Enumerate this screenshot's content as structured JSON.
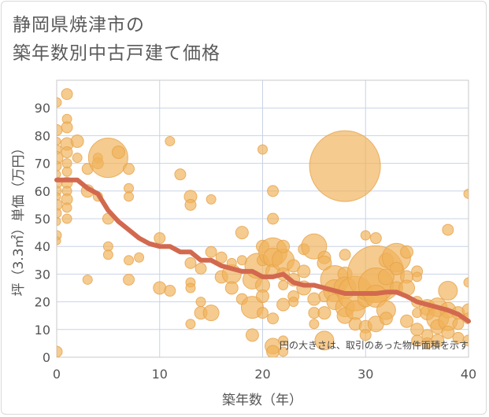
{
  "chart_data": {
    "type": "scatter",
    "title": [
      "静岡県焼津市の",
      "築年数別中古戸建て価格"
    ],
    "xlabel": "築年数（年）",
    "ylabel": "坪（3.3㎡）単価（万円）",
    "annotation": "円の大きさは、取引のあった物件面積を示す",
    "xlim": [
      0,
      40
    ],
    "ylim": [
      0,
      100
    ],
    "xticks": [
      0,
      10,
      20,
      30,
      40
    ],
    "yticks": [
      0,
      10,
      20,
      30,
      40,
      50,
      60,
      70,
      80,
      90
    ],
    "colors": {
      "bubble": "#f0b35a",
      "bubble_stroke": "#e6a24a",
      "trend": "#d2694f",
      "grid": "#c9d3e6",
      "plot_border": "#c9c9c9"
    },
    "trend": {
      "x": [
        0,
        1,
        2,
        3,
        4,
        5,
        6,
        7,
        8,
        9,
        10,
        11,
        12,
        13,
        14,
        15,
        16,
        17,
        18,
        19,
        20,
        21,
        22,
        23,
        24,
        25,
        26,
        27,
        28,
        29,
        30,
        31,
        32,
        33,
        34,
        35,
        36,
        37,
        38,
        39,
        40
      ],
      "y": [
        64,
        64,
        64,
        61,
        59,
        53,
        49,
        46,
        43,
        41,
        40,
        40,
        38,
        38,
        35,
        35,
        33,
        32,
        31,
        31,
        29,
        29,
        30,
        27,
        26,
        26,
        25,
        24,
        23,
        23,
        23,
        23,
        23.5,
        23.5,
        22,
        20,
        19,
        18,
        17,
        15.5,
        13
      ]
    },
    "points": [
      {
        "x": 0,
        "y": 92,
        "s": 6
      },
      {
        "x": 0,
        "y": 82,
        "s": 7
      },
      {
        "x": 0,
        "y": 78,
        "s": 5
      },
      {
        "x": 0,
        "y": 75,
        "s": 6
      },
      {
        "x": 0,
        "y": 72,
        "s": 8
      },
      {
        "x": 0,
        "y": 69,
        "s": 6
      },
      {
        "x": 0,
        "y": 66,
        "s": 5
      },
      {
        "x": 0,
        "y": 63,
        "s": 7
      },
      {
        "x": 0,
        "y": 60,
        "s": 6
      },
      {
        "x": 0,
        "y": 58,
        "s": 5
      },
      {
        "x": 0,
        "y": 55,
        "s": 7
      },
      {
        "x": 0,
        "y": 52,
        "s": 6
      },
      {
        "x": 0,
        "y": 49,
        "s": 5
      },
      {
        "x": 0,
        "y": 44,
        "s": 6
      },
      {
        "x": 0,
        "y": 42,
        "s": 5
      },
      {
        "x": 0,
        "y": 2,
        "s": 7
      },
      {
        "x": 1,
        "y": 95,
        "s": 7
      },
      {
        "x": 1,
        "y": 86,
        "s": 6
      },
      {
        "x": 1,
        "y": 83,
        "s": 7
      },
      {
        "x": 1,
        "y": 77,
        "s": 8
      },
      {
        "x": 1,
        "y": 74,
        "s": 7
      },
      {
        "x": 1,
        "y": 70,
        "s": 6
      },
      {
        "x": 1,
        "y": 67,
        "s": 6
      },
      {
        "x": 1,
        "y": 63,
        "s": 7
      },
      {
        "x": 1,
        "y": 60,
        "s": 6
      },
      {
        "x": 1,
        "y": 57,
        "s": 7
      },
      {
        "x": 1,
        "y": 54,
        "s": 6
      },
      {
        "x": 1,
        "y": 50,
        "s": 6
      },
      {
        "x": 2,
        "y": 78,
        "s": 8
      },
      {
        "x": 2,
        "y": 72,
        "s": 6
      },
      {
        "x": 3,
        "y": 68,
        "s": 7
      },
      {
        "x": 3,
        "y": 60,
        "s": 8
      },
      {
        "x": 3,
        "y": 28,
        "s": 6
      },
      {
        "x": 4,
        "y": 72,
        "s": 6
      },
      {
        "x": 4,
        "y": 70,
        "s": 7
      },
      {
        "x": 4,
        "y": 58,
        "s": 6
      },
      {
        "x": 5,
        "y": 72,
        "s": 25
      },
      {
        "x": 5,
        "y": 50,
        "s": 7
      },
      {
        "x": 5,
        "y": 40,
        "s": 6
      },
      {
        "x": 5,
        "y": 37,
        "s": 6
      },
      {
        "x": 6,
        "y": 74,
        "s": 8
      },
      {
        "x": 7,
        "y": 68,
        "s": 7
      },
      {
        "x": 7,
        "y": 61,
        "s": 6
      },
      {
        "x": 7,
        "y": 58,
        "s": 6
      },
      {
        "x": 7,
        "y": 35,
        "s": 6
      },
      {
        "x": 7,
        "y": 28,
        "s": 7
      },
      {
        "x": 8,
        "y": 36,
        "s": 6
      },
      {
        "x": 10,
        "y": 43,
        "s": 7
      },
      {
        "x": 10,
        "y": 25,
        "s": 8
      },
      {
        "x": 11,
        "y": 78,
        "s": 6
      },
      {
        "x": 11,
        "y": 24,
        "s": 7
      },
      {
        "x": 12,
        "y": 66,
        "s": 7
      },
      {
        "x": 13,
        "y": 58,
        "s": 8
      },
      {
        "x": 13,
        "y": 55,
        "s": 7
      },
      {
        "x": 13,
        "y": 34,
        "s": 7
      },
      {
        "x": 13,
        "y": 27,
        "s": 6
      },
      {
        "x": 13,
        "y": 25,
        "s": 6
      },
      {
        "x": 13,
        "y": 12,
        "s": 6
      },
      {
        "x": 14,
        "y": 32,
        "s": 7
      },
      {
        "x": 14,
        "y": 20,
        "s": 6
      },
      {
        "x": 14,
        "y": 16,
        "s": 8
      },
      {
        "x": 15,
        "y": 57,
        "s": 6
      },
      {
        "x": 15,
        "y": 38,
        "s": 7
      },
      {
        "x": 15,
        "y": 16,
        "s": 10
      },
      {
        "x": 16,
        "y": 36,
        "s": 7
      },
      {
        "x": 16,
        "y": 29,
        "s": 8
      },
      {
        "x": 17,
        "y": 30,
        "s": 12
      },
      {
        "x": 17,
        "y": 25,
        "s": 8
      },
      {
        "x": 17,
        "y": 34,
        "s": 6
      },
      {
        "x": 18,
        "y": 45,
        "s": 8
      },
      {
        "x": 18,
        "y": 21,
        "s": 7
      },
      {
        "x": 18,
        "y": 35,
        "s": 6
      },
      {
        "x": 19,
        "y": 28,
        "s": 12
      },
      {
        "x": 19,
        "y": 18,
        "s": 14
      },
      {
        "x": 19,
        "y": 8,
        "s": 8
      },
      {
        "x": 19.5,
        "y": 33,
        "s": 16
      },
      {
        "x": 20,
        "y": 75,
        "s": 6
      },
      {
        "x": 20,
        "y": 40,
        "s": 8
      },
      {
        "x": 20,
        "y": 35,
        "s": 7
      },
      {
        "x": 20,
        "y": 26,
        "s": 9
      },
      {
        "x": 20,
        "y": 22,
        "s": 8
      },
      {
        "x": 20,
        "y": 16,
        "s": 7
      },
      {
        "x": 21,
        "y": 60,
        "s": 7
      },
      {
        "x": 21,
        "y": 50,
        "s": 7
      },
      {
        "x": 21,
        "y": 38,
        "s": 18
      },
      {
        "x": 21,
        "y": 36,
        "s": 12
      },
      {
        "x": 21,
        "y": 31,
        "s": 9
      },
      {
        "x": 21,
        "y": 14,
        "s": 7
      },
      {
        "x": 21,
        "y": 4,
        "s": 10
      },
      {
        "x": 21,
        "y": 2,
        "s": 8
      },
      {
        "x": 22,
        "y": 35,
        "s": 14
      },
      {
        "x": 22,
        "y": 40,
        "s": 8
      },
      {
        "x": 22,
        "y": 30,
        "s": 8
      },
      {
        "x": 22,
        "y": 26,
        "s": 6
      },
      {
        "x": 22,
        "y": 19,
        "s": 8
      },
      {
        "x": 22,
        "y": 6,
        "s": 6
      },
      {
        "x": 22,
        "y": 2,
        "s": 6
      },
      {
        "x": 23,
        "y": 33,
        "s": 8
      },
      {
        "x": 23,
        "y": 28,
        "s": 8
      },
      {
        "x": 23,
        "y": 22,
        "s": 7
      },
      {
        "x": 23,
        "y": 20,
        "s": 6
      },
      {
        "x": 24,
        "y": 31,
        "s": 8
      },
      {
        "x": 24,
        "y": 25,
        "s": 9
      },
      {
        "x": 24,
        "y": 39,
        "s": 7
      },
      {
        "x": 25,
        "y": 40,
        "s": 16
      },
      {
        "x": 25,
        "y": 21,
        "s": 8
      },
      {
        "x": 25,
        "y": 16,
        "s": 7
      },
      {
        "x": 25,
        "y": 12,
        "s": 6
      },
      {
        "x": 26,
        "y": 36,
        "s": 8
      },
      {
        "x": 26,
        "y": 34,
        "s": 9
      },
      {
        "x": 26,
        "y": 22,
        "s": 7
      },
      {
        "x": 26,
        "y": 16,
        "s": 8
      },
      {
        "x": 26,
        "y": 6,
        "s": 12
      },
      {
        "x": 27,
        "y": 28,
        "s": 18
      },
      {
        "x": 27,
        "y": 24,
        "s": 14
      },
      {
        "x": 27,
        "y": 20,
        "s": 10
      },
      {
        "x": 28,
        "y": 69,
        "s": 45
      },
      {
        "x": 28,
        "y": 37,
        "s": 7
      },
      {
        "x": 28,
        "y": 30,
        "s": 9
      },
      {
        "x": 28,
        "y": 25,
        "s": 14
      },
      {
        "x": 28,
        "y": 18,
        "s": 12
      },
      {
        "x": 28,
        "y": 15,
        "s": 10
      },
      {
        "x": 29,
        "y": 23,
        "s": 22
      },
      {
        "x": 29,
        "y": 17,
        "s": 12
      },
      {
        "x": 29,
        "y": 12,
        "s": 8
      },
      {
        "x": 30,
        "y": 44,
        "s": 6
      },
      {
        "x": 30,
        "y": 21,
        "s": 10
      },
      {
        "x": 30,
        "y": 11,
        "s": 8
      },
      {
        "x": 30,
        "y": 8,
        "s": 7
      },
      {
        "x": 31,
        "y": 43,
        "s": 7
      },
      {
        "x": 31,
        "y": 30,
        "s": 36
      },
      {
        "x": 31,
        "y": 26,
        "s": 22
      },
      {
        "x": 31,
        "y": 22,
        "s": 14
      },
      {
        "x": 31,
        "y": 12,
        "s": 10
      },
      {
        "x": 32,
        "y": 35,
        "s": 9
      },
      {
        "x": 32,
        "y": 29,
        "s": 10
      },
      {
        "x": 32,
        "y": 17,
        "s": 12
      },
      {
        "x": 32,
        "y": 14,
        "s": 8
      },
      {
        "x": 33,
        "y": 36,
        "s": 18
      },
      {
        "x": 33,
        "y": 32,
        "s": 8
      },
      {
        "x": 33,
        "y": 25,
        "s": 8
      },
      {
        "x": 34,
        "y": 38,
        "s": 8
      },
      {
        "x": 34,
        "y": 29,
        "s": 8
      },
      {
        "x": 34,
        "y": 25,
        "s": 10
      },
      {
        "x": 34,
        "y": 13,
        "s": 8
      },
      {
        "x": 35,
        "y": 31,
        "s": 7
      },
      {
        "x": 35,
        "y": 29,
        "s": 6
      },
      {
        "x": 35,
        "y": 20,
        "s": 7
      },
      {
        "x": 35,
        "y": 16,
        "s": 6
      },
      {
        "x": 35,
        "y": 10,
        "s": 8
      },
      {
        "x": 35,
        "y": 6,
        "s": 7
      },
      {
        "x": 36,
        "y": 18,
        "s": 10
      },
      {
        "x": 36,
        "y": 16,
        "s": 9
      },
      {
        "x": 36,
        "y": 8,
        "s": 7
      },
      {
        "x": 36,
        "y": 5,
        "s": 7
      },
      {
        "x": 37,
        "y": 18,
        "s": 12
      },
      {
        "x": 37,
        "y": 14,
        "s": 14
      },
      {
        "x": 37,
        "y": 11,
        "s": 9
      },
      {
        "x": 37,
        "y": 6,
        "s": 8
      },
      {
        "x": 38,
        "y": 24,
        "s": 12
      },
      {
        "x": 38,
        "y": 17,
        "s": 10
      },
      {
        "x": 38,
        "y": 46,
        "s": 7
      },
      {
        "x": 38,
        "y": 13,
        "s": 12
      },
      {
        "x": 38,
        "y": 9,
        "s": 8
      },
      {
        "x": 39,
        "y": 16,
        "s": 8
      },
      {
        "x": 39,
        "y": 12,
        "s": 7
      },
      {
        "x": 39,
        "y": 7,
        "s": 7
      },
      {
        "x": 40,
        "y": 59,
        "s": 6
      },
      {
        "x": 40,
        "y": 27,
        "s": 6
      },
      {
        "x": 40,
        "y": 17,
        "s": 8
      },
      {
        "x": 40,
        "y": 14,
        "s": 7
      },
      {
        "x": 40,
        "y": 6,
        "s": 7
      }
    ]
  }
}
